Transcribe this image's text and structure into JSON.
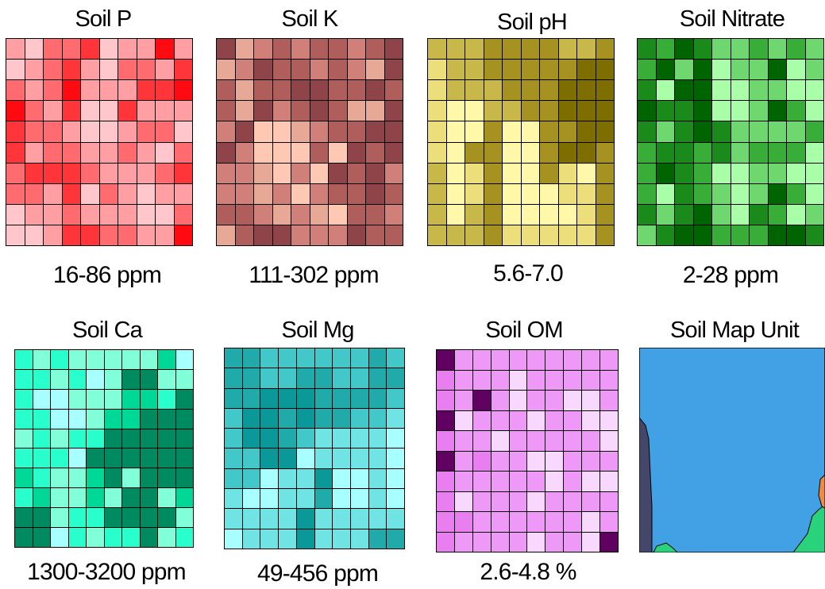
{
  "panels": [
    {
      "id": "soil-p",
      "title": "Soil P",
      "caption": "16-86 ppm",
      "palette": [
        "#ffc7cc",
        "#ff9fa3",
        "#ff6b6f",
        "#ff3539",
        "#ff0a10"
      ],
      "cells": [
        "1022301141",
        "0123102213",
        "2124111334",
        "4213003111",
        "3221001220",
        "3122112102",
        "2333211123",
        "2213021011",
        "0112111002",
        "0013322114"
      ]
    },
    {
      "id": "soil-k",
      "title": "Soil K",
      "caption": "111-302 ppm",
      "palette": [
        "#ffc8b2",
        "#e8a896",
        "#d08078",
        "#b05e5c",
        "#8e4448"
      ],
      "cells": [
        "4123233234",
        "1243323214",
        "3133443343",
        "3142343114",
        "2400123344",
        "4200030434",
        "2210204342",
        "2212023343",
        "3321210332",
        "1344222433"
      ]
    },
    {
      "id": "soil-ph",
      "title": "Soil pH",
      "caption": "5.6-7.0",
      "palette": [
        "#fff8a8",
        "#ecde7a",
        "#c8b84a",
        "#a59220",
        "#7e6e00"
      ],
      "cells": [
        "2223333223",
        "1223333344",
        "1222333444",
        "1002233444",
        "1003003344",
        "1033003443",
        "2013003103",
        "2013000113",
        "2023000013",
        "2223111113"
      ]
    },
    {
      "id": "soil-nitrate",
      "title": "Soil Nitrate",
      "caption": "2-28 ppm",
      "palette": [
        "#a8ffa8",
        "#6ed76e",
        "#38ae38",
        "#1a8a1a",
        "#006400"
      ],
      "cells": [
        "3243112121",
        "2414011401",
        "3044001100",
        "4334001420",
        "3134311112",
        "2332312220",
        "2432001100",
        "2032101420",
        "3134103201",
        "1344222443"
      ]
    },
    {
      "id": "soil-ca",
      "title": "Soil Ca",
      "caption": "1300-3200 ppm",
      "palette": [
        "#a8ffff",
        "#80ffd8",
        "#28ffcc",
        "#00d898",
        "#008a60"
      ],
      "cells": [
        "2121111130",
        "2212014411",
        "2001113324",
        "2200133444",
        "1212244444",
        "2220444444",
        "3211341444",
        "2311314413",
        "4412244441",
        "4402122412"
      ]
    },
    {
      "id": "soil-mg",
      "title": "Soil Mg",
      "caption": "49-456 ppm",
      "palette": [
        "#a8ffff",
        "#70e4e4",
        "#42c8c8",
        "#20aaaa",
        "#0a9898"
      ],
      "cells": [
        "3322222232",
        "3322332233",
        "3344433332",
        "2443433221",
        "2443211110",
        "2244011110",
        "2201140010",
        "1001130010",
        "1111411111",
        "0111411133"
      ]
    },
    {
      "id": "soil-om",
      "title": "Soil OM",
      "caption": "2.6-4.8 %",
      "palette": [
        "#f8d8ff",
        "#ee98f8",
        "#e87ef0",
        "#880088",
        "#600060"
      ],
      "cells": [
        "4111111111",
        "2111011111",
        "2141011001",
        "4011101100",
        "2110111110",
        "4121100111",
        "2111110100",
        "2011101111",
        "2211111101",
        "2111101104"
      ]
    }
  ],
  "map_panel": {
    "title": "Soil Map Unit",
    "colors": {
      "main": "#42a0e4",
      "left_unit": "#44466a",
      "green_unit": "#2ad27c",
      "orange_unit": "#f08a40"
    }
  }
}
